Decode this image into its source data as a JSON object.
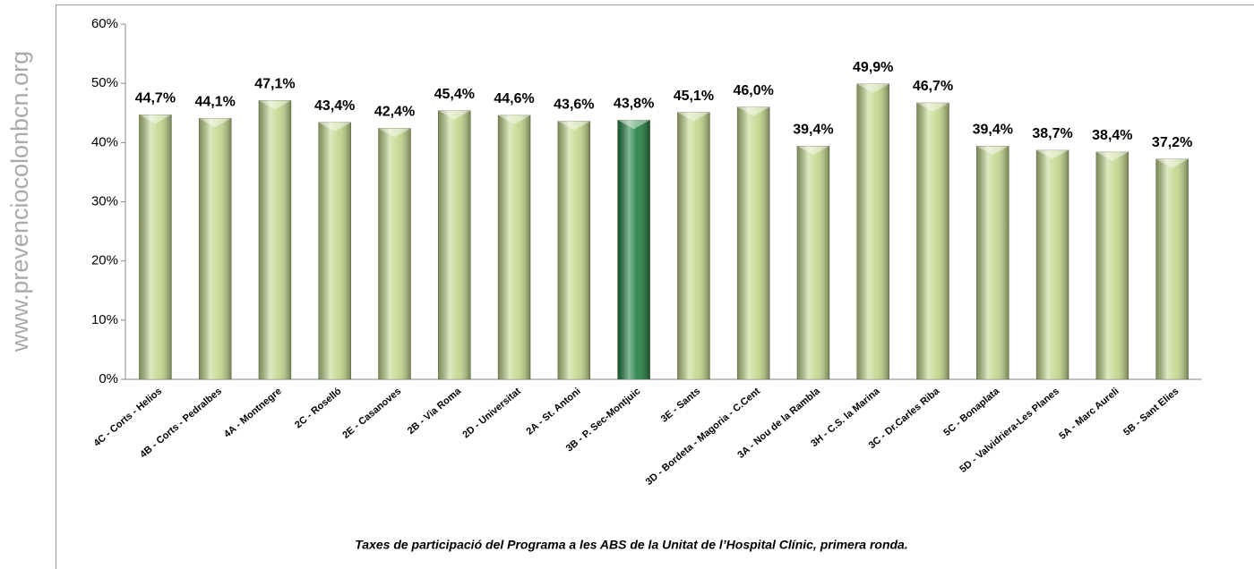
{
  "watermark": "www.prevenciocolonbcn.org",
  "chart_data": {
    "type": "bar",
    "caption": "Taxes de participació del Programa a les ABS de la Unitat de l’Hospital Clínic, primera ronda.",
    "categories": [
      "4C - Corts - Helios",
      "4B - Corts - Pedralbes",
      "4A - Montnegre",
      "2C - Roselló",
      "2E - Casanoves",
      "2B - Via Roma",
      "2D - Universitat",
      "2A - St. Antoni",
      "3B - P. Sec-Montjuic",
      "3E - Sants",
      "3D - Bordeta - Magoria - C.Cent",
      "3A - Nou de la Rambla",
      "3H - C.S. la Marina",
      "3C - Dr.Carles Riba",
      "5C - Bonaplata",
      "5D - Valvidriera-Les Planes",
      "5A - Marc Aureli",
      "5B - Sant Elies"
    ],
    "values": [
      44.7,
      44.1,
      47.1,
      43.4,
      42.4,
      45.4,
      44.6,
      43.6,
      43.8,
      45.1,
      46.0,
      39.4,
      49.9,
      46.7,
      39.4,
      38.7,
      38.4,
      37.2
    ],
    "value_labels": [
      "44,7%",
      "44,1%",
      "47,1%",
      "43,4%",
      "42,4%",
      "45,4%",
      "44,6%",
      "43,6%",
      "43,8%",
      "45,1%",
      "46,0%",
      "39,4%",
      "49,9%",
      "46,7%",
      "39,4%",
      "38,7%",
      "38,4%",
      "37,2%"
    ],
    "colors": [
      "#c3d68c",
      "#c3d68c",
      "#c3d68c",
      "#c3d68c",
      "#c3d68c",
      "#c3d68c",
      "#c3d68c",
      "#c3d68c",
      "#1d7d3f",
      "#c3d68c",
      "#c3d68c",
      "#c3d68c",
      "#c3d68c",
      "#c3d68c",
      "#c3d68c",
      "#c3d68c",
      "#c3d68c",
      "#c3d68c"
    ],
    "ylim": [
      0,
      60
    ],
    "yticks": [
      {
        "value": 0,
        "label": "0%"
      },
      {
        "value": 10,
        "label": "10%"
      },
      {
        "value": 20,
        "label": "20%"
      },
      {
        "value": 30,
        "label": "30%"
      },
      {
        "value": 40,
        "label": "40%"
      },
      {
        "value": 50,
        "label": "50%"
      },
      {
        "value": 60,
        "label": "60%"
      }
    ],
    "grid": false
  }
}
